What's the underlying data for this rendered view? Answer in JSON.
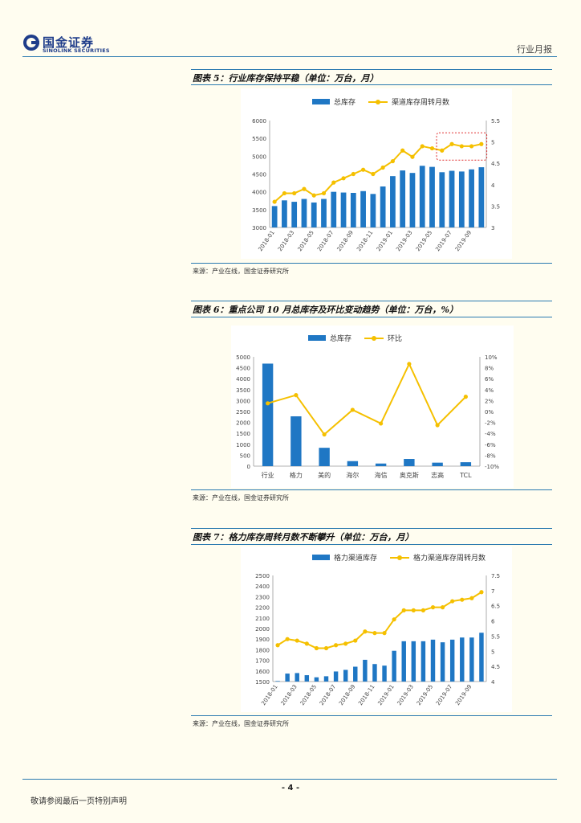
{
  "header": {
    "company_cn": "国金证券",
    "company_en": "SINOLINK SECURITIES",
    "report_type": "行业月报"
  },
  "figures": [
    {
      "title": "图表 5：行业库存保持平稳（单位：万台，月）",
      "source": "来源：产业在线，国金证券研究所"
    },
    {
      "title": "图表 6：重点公司 10 月总库存及环比变动趋势（单位：万台，%）",
      "source": "来源：产业在线，国金证券研究所"
    },
    {
      "title": "图表 7：格力库存周转月数不断攀升（单位：万台，月）",
      "source": "来源：产业在线，国金证券研究所"
    }
  ],
  "footer": {
    "page_number": "- 4 -",
    "disclaimer": "敬请参阅最后一页特别声明"
  },
  "colors": {
    "bar": "#1f77c4",
    "line": "#f5c000",
    "accent": "#2a7ab0",
    "highlight": "#e03030"
  },
  "chart_data": [
    {
      "type": "bar+line",
      "legend": [
        "总库存",
        "渠道库存周转月数"
      ],
      "categories": [
        "2018-01",
        "2018-02",
        "2018-03",
        "2018-04",
        "2018-05",
        "2018-06",
        "2018-07",
        "2018-08",
        "2018-09",
        "2018-10",
        "2018-11",
        "2018-12",
        "2019-01",
        "2019-02",
        "2019-03",
        "2019-04",
        "2019-05",
        "2019-06",
        "2019-07",
        "2019-08",
        "2019-09",
        "2019-10"
      ],
      "x_tick_labels": [
        "2018-01",
        "2018-03",
        "2018-05",
        "2018-07",
        "2018-09",
        "2018-11",
        "2019-01",
        "2019-03",
        "2019-05",
        "2019-07",
        "2019-09"
      ],
      "series": [
        {
          "name": "总库存",
          "axis": "left",
          "values": [
            3600,
            3760,
            3720,
            3800,
            3700,
            3800,
            4000,
            3980,
            3970,
            4020,
            3940,
            4150,
            4440,
            4600,
            4530,
            4730,
            4700,
            4550,
            4590,
            4570,
            4630,
            4690
          ]
        },
        {
          "name": "渠道库存周转月数",
          "axis": "right",
          "values": [
            3.6,
            3.8,
            3.8,
            3.9,
            3.75,
            3.8,
            4.05,
            4.15,
            4.25,
            4.35,
            4.25,
            4.4,
            4.55,
            4.8,
            4.65,
            4.9,
            4.85,
            4.8,
            4.95,
            4.9,
            4.9,
            4.95
          ]
        }
      ],
      "y_left": {
        "min": 3000,
        "max": 6000,
        "step": 500,
        "ticks": [
          "3000",
          "3500",
          "4000",
          "4500",
          "5000",
          "5500",
          "6000"
        ]
      },
      "y_right": {
        "min": 3,
        "max": 5.5,
        "step": 0.5,
        "ticks": [
          "3",
          "3.5",
          "4",
          "4.5",
          "5",
          "5.5"
        ]
      },
      "highlight": {
        "from_category": "2019-06",
        "to_category": "2019-10"
      }
    },
    {
      "type": "bar+line",
      "legend": [
        "总库存",
        "环比"
      ],
      "categories": [
        "行业",
        "格力",
        "美的",
        "海尔",
        "海信",
        "奥克斯",
        "志高",
        "TCL"
      ],
      "series": [
        {
          "name": "总库存",
          "axis": "left",
          "values": [
            4690,
            2280,
            840,
            230,
            120,
            330,
            160,
            180
          ]
        },
        {
          "name": "环比",
          "axis": "right",
          "values": [
            1.5,
            3.0,
            -4.2,
            0.3,
            -2.2,
            8.7,
            -2.5,
            2.7
          ]
        }
      ],
      "y_left": {
        "min": 0,
        "max": 5000,
        "step": 500,
        "ticks": [
          "0",
          "500",
          "1000",
          "1500",
          "2000",
          "2500",
          "3000",
          "3500",
          "4000",
          "4500",
          "5000"
        ]
      },
      "y_right": {
        "min": -10,
        "max": 10,
        "step": 2,
        "ticks": [
          "-10%",
          "-8%",
          "-6%",
          "-4%",
          "-2%",
          "0%",
          "2%",
          "4%",
          "6%",
          "8%",
          "10%"
        ]
      }
    },
    {
      "type": "bar+line",
      "legend": [
        "格力渠道库存",
        "格力渠道库存周转月数"
      ],
      "categories": [
        "2018-01",
        "2018-02",
        "2018-03",
        "2018-04",
        "2018-05",
        "2018-06",
        "2018-07",
        "2018-08",
        "2018-09",
        "2018-10",
        "2018-11",
        "2018-12",
        "2019-01",
        "2019-02",
        "2019-03",
        "2019-04",
        "2019-05",
        "2019-06",
        "2019-07",
        "2019-08",
        "2019-09",
        "2019-10"
      ],
      "x_tick_labels": [
        "2018-01",
        "2018-03",
        "2018-05",
        "2018-07",
        "2018-09",
        "2018-11",
        "2019-01",
        "2019-03",
        "2019-05",
        "2019-07",
        "2019-09"
      ],
      "series": [
        {
          "name": "格力渠道库存",
          "axis": "left",
          "values": [
            1505,
            1575,
            1580,
            1560,
            1540,
            1550,
            1595,
            1610,
            1640,
            1705,
            1665,
            1650,
            1790,
            1880,
            1880,
            1880,
            1895,
            1870,
            1895,
            1915,
            1915,
            1960
          ]
        },
        {
          "name": "格力渠道库存周转月数",
          "axis": "right",
          "values": [
            5.2,
            5.4,
            5.35,
            5.25,
            5.1,
            5.1,
            5.2,
            5.25,
            5.35,
            5.65,
            5.6,
            5.6,
            6.05,
            6.35,
            6.35,
            6.35,
            6.45,
            6.45,
            6.65,
            6.7,
            6.75,
            6.95
          ]
        }
      ],
      "y_left": {
        "min": 1500,
        "max": 2500,
        "step": 100,
        "ticks": [
          "1500",
          "1600",
          "1700",
          "1800",
          "1900",
          "2000",
          "2100",
          "2200",
          "2300",
          "2400",
          "2500"
        ]
      },
      "y_right": {
        "min": 4,
        "max": 7.5,
        "step": 0.5,
        "ticks": [
          "4",
          "4.5",
          "5",
          "5.5",
          "6",
          "6.5",
          "7",
          "7.5"
        ]
      }
    }
  ]
}
